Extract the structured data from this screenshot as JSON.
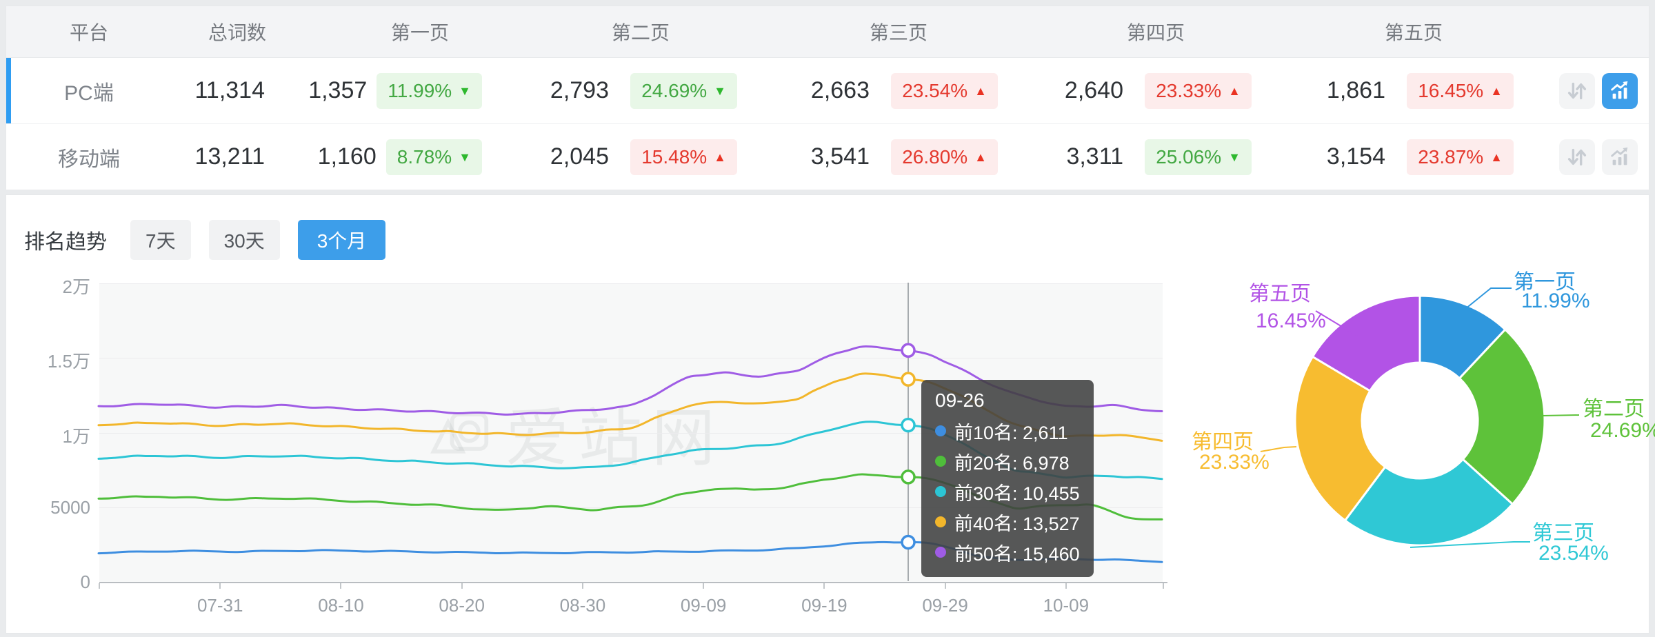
{
  "colors": {
    "accent_blue": "#3d9eea",
    "selected_row_bar": "#2f9df2",
    "positive_green": "#43a843",
    "positive_bg": "#e8f7e7",
    "negative_red": "#e4392e",
    "negative_bg": "#fdecec",
    "header_bg": "#f3f4f6",
    "page_bg": "#e9ebed",
    "axis_text": "#9aa0a6",
    "inactive_icon": "#c7ccd2",
    "tooltip_bg": "rgba(64,64,64,0.88)"
  },
  "icons": {
    "sort": "updown-arrows-icon",
    "chart": "trend-chart-icon",
    "up_arrow": "▲",
    "down_arrow": "▼"
  },
  "table": {
    "columns": [
      "平台",
      "总词数",
      "第一页",
      "第二页",
      "第三页",
      "第四页",
      "第五页"
    ],
    "rows": [
      {
        "platform": "PC端",
        "total": "11,314",
        "selected": true,
        "chart_active": true,
        "pages": [
          {
            "count": "1,357",
            "percent": "11.99%",
            "direction": "down",
            "tone": "positive"
          },
          {
            "count": "2,793",
            "percent": "24.69%",
            "direction": "down",
            "tone": "positive"
          },
          {
            "count": "2,663",
            "percent": "23.54%",
            "direction": "up",
            "tone": "negative"
          },
          {
            "count": "2,640",
            "percent": "23.33%",
            "direction": "up",
            "tone": "negative"
          },
          {
            "count": "1,861",
            "percent": "16.45%",
            "direction": "up",
            "tone": "negative"
          }
        ]
      },
      {
        "platform": "移动端",
        "total": "13,211",
        "selected": false,
        "chart_active": false,
        "pages": [
          {
            "count": "1,160",
            "percent": "8.78%",
            "direction": "down",
            "tone": "positive"
          },
          {
            "count": "2,045",
            "percent": "15.48%",
            "direction": "up",
            "tone": "negative"
          },
          {
            "count": "3,541",
            "percent": "26.80%",
            "direction": "up",
            "tone": "negative"
          },
          {
            "count": "3,311",
            "percent": "25.06%",
            "direction": "down",
            "tone": "positive"
          },
          {
            "count": "3,154",
            "percent": "23.87%",
            "direction": "up",
            "tone": "negative"
          }
        ]
      }
    ]
  },
  "trend": {
    "title": "排名趋势",
    "ranges": [
      {
        "label": "7天",
        "active": false
      },
      {
        "label": "30天",
        "active": false
      },
      {
        "label": "3个月",
        "active": true
      }
    ],
    "watermark": "爱站网"
  },
  "chart_data": [
    {
      "type": "line",
      "title": "排名趋势（3个月）",
      "x": {
        "tick_labels": [
          "07-31",
          "08-10",
          "08-20",
          "08-30",
          "09-09",
          "09-19",
          "09-29",
          "10-09"
        ],
        "tick_days": [
          10,
          20,
          30,
          40,
          50,
          60,
          70,
          80
        ],
        "domain_days": [
          0,
          88
        ]
      },
      "y": {
        "tick_labels": [
          "0",
          "5000",
          "1万",
          "1.5万",
          "2万"
        ],
        "tick_values": [
          0,
          5000,
          10000,
          15000,
          20000
        ],
        "min": 0,
        "max": 20000
      },
      "grid": true,
      "legend_position": "none",
      "series": [
        {
          "name": "前10名",
          "color": "#3e8ee0",
          "keypoints": [
            [
              0,
              1900
            ],
            [
              6,
              2020
            ],
            [
              12,
              1980
            ],
            [
              18,
              2060
            ],
            [
              24,
              2000
            ],
            [
              30,
              1930
            ],
            [
              36,
              1880
            ],
            [
              42,
              1930
            ],
            [
              48,
              1980
            ],
            [
              54,
              2060
            ],
            [
              58,
              2200
            ],
            [
              62,
              2500
            ],
            [
              65,
              2640
            ],
            [
              67,
              2611
            ],
            [
              69,
              2520
            ],
            [
              71,
              2150
            ],
            [
              73,
              1600
            ],
            [
              76,
              1430
            ],
            [
              80,
              1500
            ],
            [
              84,
              1430
            ],
            [
              88,
              1320
            ]
          ]
        },
        {
          "name": "前20名",
          "color": "#4fbe3b",
          "keypoints": [
            [
              0,
              5560
            ],
            [
              5,
              5680
            ],
            [
              10,
              5480
            ],
            [
              16,
              5560
            ],
            [
              22,
              5320
            ],
            [
              28,
              5080
            ],
            [
              33,
              4720
            ],
            [
              37,
              5020
            ],
            [
              41,
              4780
            ],
            [
              45,
              5060
            ],
            [
              48,
              5760
            ],
            [
              51,
              6220
            ],
            [
              54,
              6120
            ],
            [
              57,
              6280
            ],
            [
              60,
              6820
            ],
            [
              63,
              7120
            ],
            [
              65,
              7080
            ],
            [
              67,
              6978
            ],
            [
              69,
              6820
            ],
            [
              71,
              6380
            ],
            [
              73,
              5560
            ],
            [
              76,
              4880
            ],
            [
              79,
              5060
            ],
            [
              82,
              5180
            ],
            [
              85,
              4280
            ],
            [
              88,
              4080
            ]
          ]
        },
        {
          "name": "前30名",
          "color": "#2cc5d5",
          "keypoints": [
            [
              0,
              8240
            ],
            [
              5,
              8420
            ],
            [
              10,
              8280
            ],
            [
              15,
              8400
            ],
            [
              20,
              8260
            ],
            [
              25,
              8060
            ],
            [
              30,
              7880
            ],
            [
              35,
              7680
            ],
            [
              40,
              7560
            ],
            [
              44,
              7900
            ],
            [
              47,
              8480
            ],
            [
              50,
              8820
            ],
            [
              53,
              8960
            ],
            [
              56,
              9160
            ],
            [
              59,
              9800
            ],
            [
              62,
              10480
            ],
            [
              64,
              10680
            ],
            [
              67,
              10455
            ],
            [
              69,
              10180
            ],
            [
              71,
              9520
            ],
            [
              73,
              8480
            ],
            [
              76,
              7380
            ],
            [
              80,
              6980
            ],
            [
              84,
              7060
            ],
            [
              88,
              6840
            ]
          ]
        },
        {
          "name": "前40名",
          "color": "#f2b62b",
          "keypoints": [
            [
              0,
              10480
            ],
            [
              5,
              10620
            ],
            [
              10,
              10420
            ],
            [
              15,
              10560
            ],
            [
              20,
              10360
            ],
            [
              25,
              10160
            ],
            [
              30,
              9960
            ],
            [
              35,
              9820
            ],
            [
              40,
              9960
            ],
            [
              44,
              10240
            ],
            [
              46,
              10880
            ],
            [
              49,
              11840
            ],
            [
              52,
              12020
            ],
            [
              55,
              11860
            ],
            [
              58,
              12240
            ],
            [
              61,
              13420
            ],
            [
              63,
              13880
            ],
            [
              65,
              13820
            ],
            [
              67,
              13527
            ],
            [
              69,
              13280
            ],
            [
              71,
              12620
            ],
            [
              73,
              11680
            ],
            [
              76,
              10420
            ],
            [
              80,
              9680
            ],
            [
              84,
              9820
            ],
            [
              88,
              9470
            ]
          ]
        },
        {
          "name": "前50名",
          "color": "#9f5ce5",
          "keypoints": [
            [
              0,
              11720
            ],
            [
              5,
              11880
            ],
            [
              10,
              11640
            ],
            [
              15,
              11780
            ],
            [
              20,
              11560
            ],
            [
              25,
              11420
            ],
            [
              30,
              11280
            ],
            [
              35,
              11180
            ],
            [
              40,
              11420
            ],
            [
              44,
              11720
            ],
            [
              46,
              12480
            ],
            [
              49,
              13780
            ],
            [
              52,
              13960
            ],
            [
              55,
              13680
            ],
            [
              58,
              14160
            ],
            [
              61,
              15280
            ],
            [
              63,
              15720
            ],
            [
              65,
              15620
            ],
            [
              67,
              15460
            ],
            [
              69,
              15120
            ],
            [
              71,
              14380
            ],
            [
              73,
              13480
            ],
            [
              76,
              12480
            ],
            [
              80,
              11680
            ],
            [
              84,
              11780
            ],
            [
              88,
              11330
            ]
          ]
        }
      ],
      "crosshair": {
        "day": 67,
        "date": "09-26",
        "entries": [
          {
            "name": "前10名",
            "value": 2611,
            "value_label": "2,611"
          },
          {
            "name": "前20名",
            "value": 6978,
            "value_label": "6,978"
          },
          {
            "name": "前30名",
            "value": 10455,
            "value_label": "10,455"
          },
          {
            "name": "前40名",
            "value": 13527,
            "value_label": "13,527"
          },
          {
            "name": "前50名",
            "value": 15460,
            "value_label": "15,460"
          }
        ]
      }
    },
    {
      "type": "pie",
      "donut": true,
      "labels": [
        "第一页",
        "第二页",
        "第三页",
        "第四页",
        "第五页"
      ],
      "values": [
        11.99,
        24.69,
        23.54,
        23.33,
        16.45
      ],
      "value_labels": [
        "11.99%",
        "24.69%",
        "23.54%",
        "23.33%",
        "16.45%"
      ],
      "colors": [
        "#2f97dd",
        "#5ec23a",
        "#2fc8d5",
        "#f7bc30",
        "#b253e6"
      ],
      "legend_position": "labels-outside"
    }
  ]
}
